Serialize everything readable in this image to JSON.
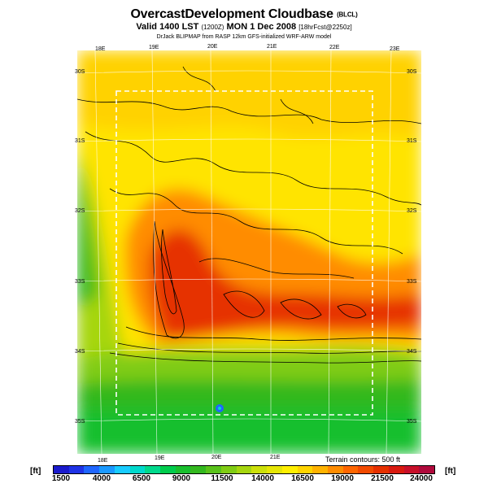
{
  "title": {
    "main": "OvercastDevelopment Cloudbase",
    "main_suffix": "(BLCL)",
    "valid": "Valid 1400 LST",
    "valid_code": "(1200Z)",
    "valid_date": "MON 1 Dec 2008",
    "forecast": "[18hrFcst@2250z]",
    "credit": "DrJack BLIPMAP from RASP 12km GFS-initialized WRF-ARW model"
  },
  "axes": {
    "lon_top": [
      "18E",
      "19E",
      "20E",
      "21E",
      "22E",
      "23E"
    ],
    "lon_bottom": [
      "18E",
      "19E",
      "20E",
      "21E"
    ],
    "lat_left": [
      "30S",
      "31S",
      "32S",
      "33S",
      "34S",
      "35S"
    ],
    "lat_right": [
      "30S",
      "31S",
      "32S",
      "33S",
      "34S",
      "35S"
    ]
  },
  "terrain_label": "Terrain contours: 500 ft",
  "colorbar": {
    "unit": "[ft]",
    "ticks": [
      "1500",
      "4000",
      "6500",
      "9000",
      "11500",
      "14000",
      "16500",
      "19000",
      "21500",
      "24000"
    ],
    "colors": [
      "#1a1acc",
      "#1f33e6",
      "#1f66ff",
      "#1a99ff",
      "#19ccff",
      "#00d9cc",
      "#00d98c",
      "#00cc4d",
      "#19bf2e",
      "#33b81f",
      "#59c21a",
      "#80cc14",
      "#a6d60f",
      "#cce00a",
      "#e6e605",
      "#ffef00",
      "#ffd400",
      "#ffb300",
      "#ff8c00",
      "#ff6600",
      "#f24a00",
      "#e63000",
      "#d91a10",
      "#c8102a",
      "#b00a3c"
    ]
  },
  "map_colors": {
    "ocean_green": "#33b81f",
    "coast_green": "#80cc14",
    "yellow": "#ffef00",
    "orange": "#ff8c00",
    "red": "#e63000"
  }
}
